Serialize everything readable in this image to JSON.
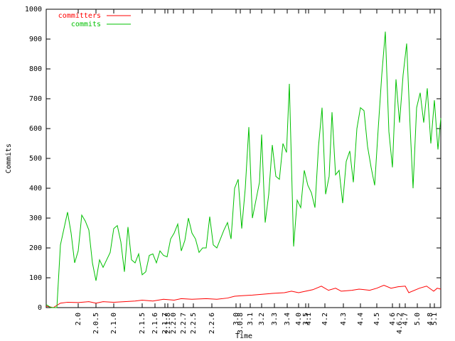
{
  "chart_data": {
    "type": "line",
    "xlabel": "Time",
    "ylabel": "Commits",
    "xlim": [
      0,
      555
    ],
    "ylim": [
      0,
      1000
    ],
    "yticks": [
      0,
      100,
      200,
      300,
      400,
      500,
      600,
      700,
      800,
      900,
      1000
    ],
    "xticks": [
      {
        "value": 45,
        "label": "2.0"
      },
      {
        "value": 70,
        "label": "2.0.5"
      },
      {
        "value": 95,
        "label": "2.1.0"
      },
      {
        "value": 135,
        "label": "2.1.5"
      },
      {
        "value": 153,
        "label": "2.1.6"
      },
      {
        "value": 167,
        "label": "2.1.7"
      },
      {
        "value": 171,
        "label": "2.1.8"
      },
      {
        "value": 179,
        "label": "2.2.0"
      },
      {
        "value": 193,
        "label": "2.2.7"
      },
      {
        "value": 207,
        "label": "2.2.5"
      },
      {
        "value": 233,
        "label": "2.2.6"
      },
      {
        "value": 267,
        "label": "3.0"
      },
      {
        "value": 273,
        "label": "3.0.8"
      },
      {
        "value": 287,
        "label": "3.1"
      },
      {
        "value": 303,
        "label": "3.2"
      },
      {
        "value": 321,
        "label": "3.3"
      },
      {
        "value": 339,
        "label": "3.4"
      },
      {
        "value": 355,
        "label": "4.0"
      },
      {
        "value": 365,
        "label": "3.5"
      },
      {
        "value": 369,
        "label": "4.1"
      },
      {
        "value": 392,
        "label": "4.2"
      },
      {
        "value": 418,
        "label": "4.3"
      },
      {
        "value": 442,
        "label": "4.4"
      },
      {
        "value": 465,
        "label": "4.5"
      },
      {
        "value": 487,
        "label": "4.6"
      },
      {
        "value": 497,
        "label": "4.6.2"
      },
      {
        "value": 505,
        "label": "4.7"
      },
      {
        "value": 522,
        "label": "5.0"
      },
      {
        "value": 540,
        "label": "4.8"
      },
      {
        "value": 546,
        "label": "5.1"
      }
    ],
    "legend": "upper left",
    "series": [
      {
        "name": "committers",
        "color": "#ff0000",
        "x": [
          0,
          10,
          20,
          30,
          45,
          60,
          70,
          80,
          95,
          110,
          125,
          135,
          150,
          165,
          180,
          190,
          205,
          225,
          240,
          255,
          265,
          275,
          290,
          305,
          320,
          335,
          345,
          355,
          375,
          387,
          397,
          407,
          415,
          430,
          440,
          455,
          465,
          475,
          485,
          495,
          505,
          510,
          525,
          535,
          545,
          550,
          555
        ],
        "values": [
          5,
          0,
          15,
          18,
          17,
          20,
          15,
          20,
          18,
          20,
          22,
          25,
          22,
          28,
          25,
          30,
          28,
          30,
          28,
          32,
          38,
          40,
          42,
          45,
          48,
          50,
          55,
          50,
          60,
          72,
          58,
          65,
          55,
          58,
          62,
          58,
          65,
          75,
          65,
          70,
          72,
          50,
          65,
          72,
          55,
          65,
          62
        ]
      },
      {
        "name": "commits",
        "color": "#00c000",
        "x": [
          0,
          7,
          15,
          20,
          30,
          35,
          40,
          45,
          50,
          55,
          60,
          65,
          70,
          75,
          80,
          85,
          90,
          95,
          100,
          105,
          110,
          115,
          120,
          125,
          130,
          135,
          140,
          145,
          150,
          155,
          160,
          165,
          170,
          175,
          180,
          185,
          190,
          195,
          200,
          205,
          210,
          215,
          220,
          225,
          230,
          235,
          240,
          245,
          250,
          255,
          260,
          265,
          270,
          275,
          280,
          285,
          290,
          295,
          300,
          303,
          308,
          313,
          318,
          323,
          328,
          333,
          338,
          342,
          348,
          353,
          358,
          363,
          368,
          373,
          378,
          383,
          388,
          393,
          398,
          402,
          407,
          412,
          417,
          422,
          427,
          432,
          437,
          442,
          447,
          452,
          457,
          462,
          467,
          472,
          477,
          482,
          487,
          492,
          497,
          502,
          507,
          512,
          516,
          521,
          526,
          531,
          536,
          541,
          546,
          551,
          555
        ],
        "values": [
          10,
          0,
          0,
          210,
          320,
          250,
          150,
          190,
          310,
          290,
          260,
          150,
          90,
          160,
          135,
          160,
          185,
          265,
          275,
          220,
          120,
          270,
          160,
          150,
          180,
          110,
          120,
          175,
          180,
          150,
          190,
          175,
          170,
          230,
          250,
          280,
          190,
          225,
          300,
          250,
          230,
          185,
          200,
          200,
          305,
          210,
          200,
          230,
          260,
          285,
          230,
          400,
          430,
          265,
          400,
          605,
          300,
          360,
          420,
          580,
          285,
          380,
          545,
          440,
          430,
          550,
          520,
          750,
          205,
          360,
          335,
          460,
          410,
          385,
          335,
          540,
          670,
          380,
          440,
          655,
          445,
          460,
          350,
          490,
          525,
          420,
          600,
          670,
          660,
          540,
          470,
          410,
          600,
          780,
          925,
          590,
          470,
          765,
          620,
          780,
          885,
          600,
          400,
          670,
          720,
          620,
          735,
          550,
          695,
          530,
          635
        ]
      }
    ]
  }
}
